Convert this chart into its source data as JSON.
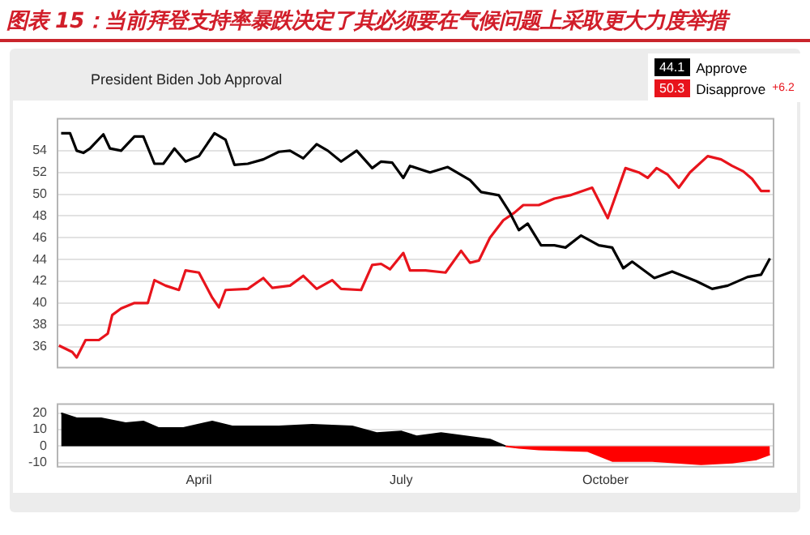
{
  "chart_data": [
    {
      "type": "line",
      "title": "图表 15：当前拜登支持率暴跌决定了其必须要在气候问题上采取更大力度举措",
      "subtitle": "President Biden Job Approval",
      "legend": "top right",
      "annotations": [
        "44.1",
        "50.3",
        "+6.2"
      ],
      "grid": "y",
      "tick_labels": "y",
      "marker": "none",
      "xlim": [
        "--01-27",
        "--12-16"
      ],
      "ylim": [
        34,
        57
      ],
      "yticks": [
        36,
        38,
        40,
        42,
        44,
        46,
        48,
        50,
        52,
        54
      ],
      "series": [
        {
          "name": "Approve",
          "color": "#000000",
          "x": [
            "--01-29",
            "--02-02",
            "--02-05",
            "--02-08",
            "--02-11",
            "--02-17",
            "--02-20",
            "--02-25",
            "--03-03",
            "--03-07",
            "--03-12",
            "--03-16",
            "--03-21",
            "--03-26",
            "--04-01",
            "--04-08",
            "--04-13",
            "--04-17",
            "--04-23",
            "--04-30",
            "--05-07",
            "--05-12",
            "--05-18",
            "--05-24",
            "--05-29",
            "--06-04",
            "--06-11",
            "--06-18",
            "--06-22",
            "--06-27",
            "--07-02",
            "--07-05",
            "--07-14",
            "--07-22",
            "--08-01",
            "--08-06",
            "--08-14",
            "--08-19",
            "--08-23",
            "--08-27",
            "--09-02",
            "--09-08",
            "--09-13",
            "--09-20",
            "--09-28",
            "--10-04",
            "--10-09",
            "--10-13",
            "--10-23",
            "--10-31",
            "--11-11",
            "--11-18",
            "--11-25",
            "--12-04",
            "--12-10",
            "--12-14"
          ],
          "values": [
            55.6,
            55.6,
            54,
            53.8,
            54.2,
            55.5,
            54.2,
            54,
            55.3,
            55.3,
            52.8,
            52.8,
            54.2,
            53,
            53.5,
            55.6,
            55,
            52.7,
            52.8,
            53.2,
            53.9,
            54,
            53.3,
            54.6,
            54,
            53,
            54,
            52.4,
            53,
            52.9,
            51.5,
            52.6,
            52,
            52.5,
            51.3,
            50.2,
            49.9,
            48.3,
            46.7,
            47.3,
            45.3,
            45.3,
            45.1,
            46.2,
            45.3,
            45.1,
            43.2,
            43.8,
            42.3,
            42.9,
            42,
            41.3,
            41.6,
            42.4,
            42.6,
            44.1
          ]
        },
        {
          "name": "Disapprove",
          "color": "#e8141c",
          "x": [
            "--01-28",
            "--02-03",
            "--02-05",
            "--02-09",
            "--02-15",
            "--02-19",
            "--02-21",
            "--02-25",
            "--03-03",
            "--03-09",
            "--03-12",
            "--03-17",
            "--03-23",
            "--03-26",
            "--04-01",
            "--04-07",
            "--04-10",
            "--04-13",
            "--04-23",
            "--04-30",
            "--05-04",
            "--05-12",
            "--05-18",
            "--05-24",
            "--05-31",
            "--06-04",
            "--06-13",
            "--06-18",
            "--06-22",
            "--06-26",
            "--07-02",
            "--07-05",
            "--07-12",
            "--07-21",
            "--07-28",
            "--08-01",
            "--08-05",
            "--08-10",
            "--08-16",
            "--08-21",
            "--08-25",
            "--09-01",
            "--09-08",
            "--09-15",
            "--09-25",
            "--10-02",
            "--10-10",
            "--10-16",
            "--10-20",
            "--10-24",
            "--10-29",
            "--11-03",
            "--11-08",
            "--11-16",
            "--11-22",
            "--11-27",
            "--12-02",
            "--12-06",
            "--12-10",
            "--12-14"
          ],
          "values": [
            36.1,
            35.5,
            35,
            36.6,
            36.6,
            37.2,
            38.9,
            39.5,
            40,
            40,
            42.1,
            41.6,
            41.2,
            43,
            42.8,
            40.5,
            39.6,
            41.2,
            41.3,
            42.3,
            41.4,
            41.6,
            42.5,
            41.3,
            42.1,
            41.3,
            41.2,
            43.5,
            43.6,
            43.1,
            44.6,
            43,
            43,
            42.8,
            44.8,
            43.7,
            43.9,
            46,
            47.6,
            48.3,
            49,
            49,
            49.6,
            49.9,
            50.6,
            47.8,
            52.4,
            52,
            51.5,
            52.4,
            51.8,
            50.6,
            52,
            53.5,
            53.2,
            52.6,
            52.1,
            51.4,
            50.3,
            50.3
          ]
        }
      ]
    },
    {
      "type": "area",
      "grid": "y",
      "marker": "none",
      "xlim": [
        "--01-27",
        "--12-16"
      ],
      "xticks": [
        {
          "value": "--04-01",
          "label": "April"
        },
        {
          "value": "--07-01",
          "label": "July"
        },
        {
          "value": "--10-01",
          "label": "October"
        }
      ],
      "ylim": [
        -13,
        26
      ],
      "yticks": [
        -10,
        0,
        10,
        20
      ],
      "series": [
        {
          "color": "#000000",
          "x": [
            "--01-29",
            "--02-05",
            "--02-16",
            "--02-27",
            "--03-07",
            "--03-14",
            "--03-25",
            "--04-07",
            "--04-16",
            "--05-07",
            "--05-22",
            "--06-09",
            "--06-20",
            "--07-01",
            "--07-08",
            "--07-19",
            "--07-30",
            "--08-10",
            "--08-17"
          ],
          "values": [
            20,
            17,
            17,
            14,
            15,
            11,
            11,
            15,
            12,
            12,
            13,
            12,
            8,
            9,
            6,
            8,
            6,
            4,
            0
          ]
        },
        {
          "color": "#ff0000",
          "x": [
            "--08-17",
            "--08-23",
            "--09-01",
            "--09-23",
            "--10-04",
            "--10-22",
            "--11-13",
            "--11-27",
            "--12-08",
            "--12-14"
          ],
          "values": [
            0,
            -1,
            -2,
            -3,
            -9,
            -9,
            -11,
            -10,
            -8,
            -5
          ]
        }
      ]
    }
  ]
}
